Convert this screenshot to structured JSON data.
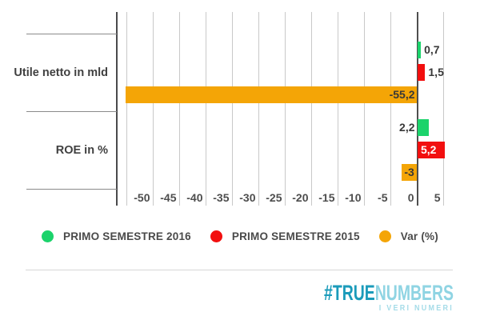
{
  "chart_data": {
    "type": "bar",
    "orientation": "horizontal",
    "title": "",
    "grid": true,
    "legend_position": "bottom",
    "categories": [
      "Utile netto in mld",
      "ROE in %"
    ],
    "series": [
      {
        "name": "PRIMO SEMESTRE 2016",
        "color": "#1BD36B",
        "values": [
          0.7,
          2.2
        ],
        "value_labels": [
          "0,7",
          "2,2"
        ],
        "label_positions": [
          "outside-right",
          "outside-left"
        ],
        "label_colors": [
          "#383838",
          "#383838"
        ]
      },
      {
        "name": "PRIMO SEMESTRE 2015",
        "color": "#F20F0F",
        "values": [
          1.5,
          5.2
        ],
        "value_labels": [
          "1,5",
          "5,2"
        ],
        "label_positions": [
          "outside-right",
          "inside-left"
        ],
        "label_colors": [
          "#383838",
          "#ffffff"
        ]
      },
      {
        "name": "Var (%)",
        "color": "#F4A506",
        "values": [
          -55.2,
          -3
        ],
        "value_labels": [
          "-55,2",
          "-3"
        ],
        "label_positions": [
          "inside-right",
          "inside-center"
        ],
        "label_colors": [
          "#383838",
          "#383838"
        ]
      }
    ],
    "x_axis": {
      "min": -56.9,
      "max": 5.8,
      "tick_values": [
        -50,
        -45,
        -40,
        -35,
        -30,
        -25,
        -20,
        -15,
        -10,
        -5,
        0,
        5
      ],
      "tick_labels": [
        "-50",
        "-45",
        "-40",
        "-35",
        "-30",
        "-25",
        "-20",
        "-15",
        "-10",
        "-5",
        "0",
        "5"
      ],
      "gridline_values": [
        -55,
        -50,
        -45,
        -40,
        -35,
        -30,
        -25,
        -20,
        -15,
        -10,
        -5,
        0,
        5
      ]
    }
  },
  "footer": {
    "brand_true": "#TRUE",
    "brand_numbers": "NUMBERS",
    "tagline": "I VERI NUMERI"
  },
  "colors": {
    "gridline": "#c9c9c9",
    "zero_line": "#4f4f4f",
    "axis_line": "#4a4a4c",
    "separator": "#8a8a8a",
    "divider": "#d6d6d6",
    "brand_dark_teal": "#1b9bba",
    "brand_light_teal": "#8fd4e3"
  }
}
